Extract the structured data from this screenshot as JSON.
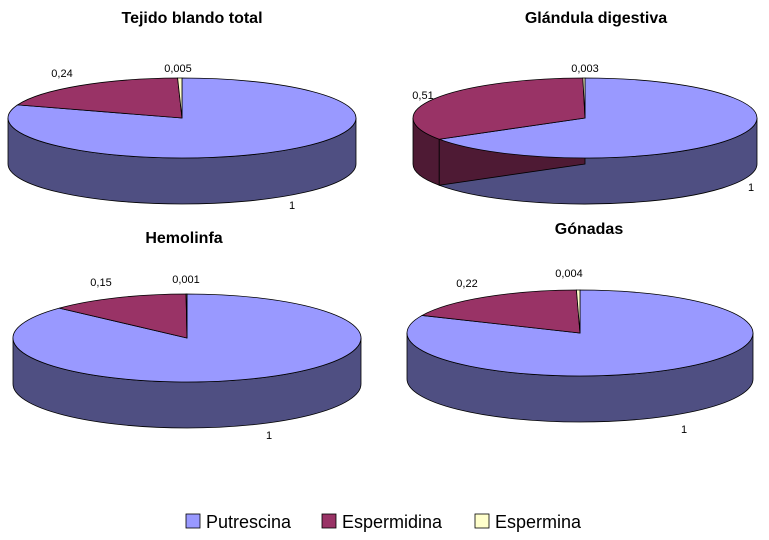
{
  "chart_data": {
    "type": "pie",
    "style": "3d",
    "series_names": [
      "Putrescina",
      "Espermidina",
      "Espermina"
    ],
    "colors": {
      "Putrescina": {
        "top": "#9999FF",
        "side": "#4F4F82"
      },
      "Espermidina": {
        "top": "#993366",
        "side": "#4E1A34"
      },
      "Espermina": {
        "top": "#FFFFCC",
        "side": "#8A8A66"
      }
    },
    "charts": [
      {
        "title": "Tejido blando total",
        "slices": [
          {
            "name": "Putrescina",
            "value": 1,
            "label": "1"
          },
          {
            "name": "Espermidina",
            "value": 0.24,
            "label": "0,24"
          },
          {
            "name": "Espermina",
            "value": 0.005,
            "label": "0,005"
          }
        ]
      },
      {
        "title": "Glándula digestiva",
        "slices": [
          {
            "name": "Putrescina",
            "value": 1,
            "label": "1"
          },
          {
            "name": "Espermidina",
            "value": 0.51,
            "label": "0,51"
          },
          {
            "name": "Espermina",
            "value": 0.003,
            "label": "0,003"
          }
        ]
      },
      {
        "title": "Hemolinfa",
        "slices": [
          {
            "name": "Putrescina",
            "value": 1,
            "label": "1"
          },
          {
            "name": "Espermidina",
            "value": 0.15,
            "label": "0,15"
          },
          {
            "name": "Espermina",
            "value": 0.001,
            "label": "0,001"
          }
        ]
      },
      {
        "title": "Gónadas",
        "slices": [
          {
            "name": "Putrescina",
            "value": 1,
            "label": "1"
          },
          {
            "name": "Espermidina",
            "value": 0.22,
            "label": "0,22"
          },
          {
            "name": "Espermina",
            "value": 0.004,
            "label": "0,004"
          }
        ]
      }
    ],
    "legend": {
      "placement": "bottom",
      "items": [
        "Putrescina",
        "Espermidina",
        "Espermina"
      ]
    }
  }
}
